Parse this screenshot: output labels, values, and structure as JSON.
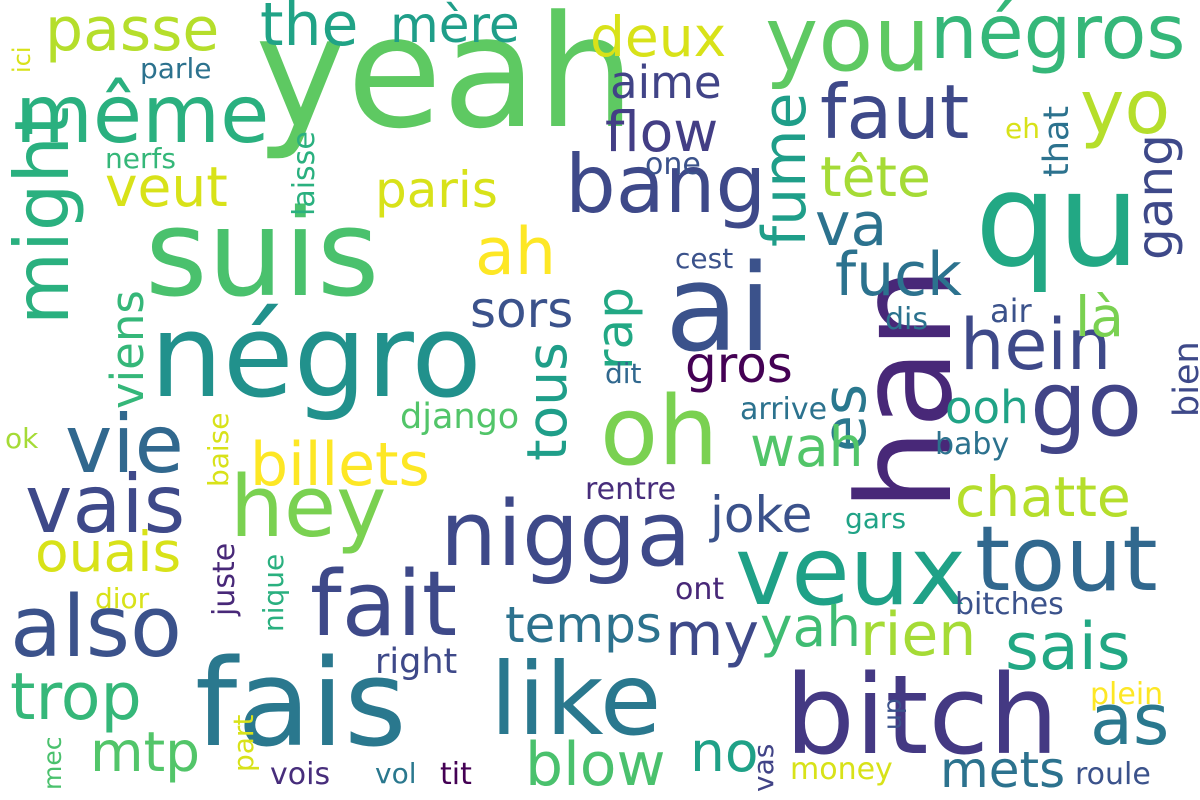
{
  "words": [
    {
      "text": "yeah",
      "color": "#5ec962"
    },
    {
      "text": "suis",
      "color": "#4ac16d"
    },
    {
      "text": "négro",
      "color": "#21918c"
    },
    {
      "text": "ai",
      "color": "#3b528b"
    },
    {
      "text": "qu",
      "color": "#22a884"
    },
    {
      "text": "han",
      "color": "#482878"
    },
    {
      "text": "fais",
      "color": "#2a788e"
    },
    {
      "text": "bitch",
      "color": "#443983"
    },
    {
      "text": "like",
      "color": "#2a788e"
    },
    {
      "text": "oh",
      "color": "#7ad151"
    },
    {
      "text": "nigga",
      "color": "#3e4989"
    },
    {
      "text": "veux",
      "color": "#1fa187"
    },
    {
      "text": "you",
      "color": "#5ec962"
    },
    {
      "text": "négros",
      "color": "#35b779"
    },
    {
      "text": "hey",
      "color": "#7ad151"
    },
    {
      "text": "go",
      "color": "#414487"
    },
    {
      "text": "même",
      "color": "#2ab07f"
    },
    {
      "text": "fait",
      "color": "#3e4989"
    },
    {
      "text": "tout",
      "color": "#31688e"
    },
    {
      "text": "also",
      "color": "#3b528b"
    },
    {
      "text": "vie",
      "color": "#31688e"
    },
    {
      "text": "vais",
      "color": "#3e4989"
    },
    {
      "text": "yo",
      "color": "#b5de2b"
    },
    {
      "text": "faut",
      "color": "#3e4989"
    },
    {
      "text": "bang",
      "color": "#3e4989"
    },
    {
      "text": "hein",
      "color": "#3e4989"
    },
    {
      "text": "might",
      "color": "#2ab07f"
    },
    {
      "text": "passe",
      "color": "#b5de2b"
    },
    {
      "text": "the",
      "color": "#20a386"
    },
    {
      "text": "mère",
      "color": "#1f9e89"
    },
    {
      "text": "deux",
      "color": "#d8e219"
    },
    {
      "text": "aime",
      "color": "#414487"
    },
    {
      "text": "flow",
      "color": "#433e85"
    },
    {
      "text": "tête",
      "color": "#a5db36"
    },
    {
      "text": "paris",
      "color": "#d8e219"
    },
    {
      "text": "veut",
      "color": "#d8e219"
    },
    {
      "text": "ah",
      "color": "#fde725"
    },
    {
      "text": "va",
      "color": "#2c728e"
    },
    {
      "text": "fuck",
      "color": "#2c728e"
    },
    {
      "text": "là",
      "color": "#7ad151"
    },
    {
      "text": "es",
      "color": "#2a788e"
    },
    {
      "text": "fume",
      "color": "#1f9e89"
    },
    {
      "text": "gang",
      "color": "#3e4989"
    },
    {
      "text": "sors",
      "color": "#3b528b"
    },
    {
      "text": "tous",
      "color": "#1f9e89"
    },
    {
      "text": "rap",
      "color": "#22a884"
    },
    {
      "text": "gros",
      "color": "#440154"
    },
    {
      "text": "billets",
      "color": "#fde725"
    },
    {
      "text": "chatte",
      "color": "#b5de2b"
    },
    {
      "text": "ooh",
      "color": "#20a386"
    },
    {
      "text": "wah",
      "color": "#52c569"
    },
    {
      "text": "joke",
      "color": "#3b528b"
    },
    {
      "text": "temps",
      "color": "#2c728e"
    },
    {
      "text": "my",
      "color": "#3e4989"
    },
    {
      "text": "yah",
      "color": "#3fbc73"
    },
    {
      "text": "rien",
      "color": "#a5db36"
    },
    {
      "text": "sais",
      "color": "#22a884"
    },
    {
      "text": "trop",
      "color": "#35b779"
    },
    {
      "text": "mtp",
      "color": "#52c569"
    },
    {
      "text": "blow",
      "color": "#4ac16d"
    },
    {
      "text": "no",
      "color": "#1fa187"
    },
    {
      "text": "as",
      "color": "#2a788e"
    },
    {
      "text": "mets",
      "color": "#2c728e"
    },
    {
      "text": "ouais",
      "color": "#d8e219"
    },
    {
      "text": "viens",
      "color": "#35b779"
    },
    {
      "text": "django",
      "color": "#52c569"
    },
    {
      "text": "one",
      "color": "#3b528b"
    },
    {
      "text": "cest",
      "color": "#3b528b"
    },
    {
      "text": "dit",
      "color": "#31688e"
    },
    {
      "text": "dis",
      "color": "#2c728e"
    },
    {
      "text": "air",
      "color": "#3b528b"
    },
    {
      "text": "arrive",
      "color": "#2c728e"
    },
    {
      "text": "baby",
      "color": "#2c728e"
    },
    {
      "text": "rentre",
      "color": "#472d7b"
    },
    {
      "text": "gars",
      "color": "#20a386"
    },
    {
      "text": "bitches",
      "color": "#3b528b"
    },
    {
      "text": "ont",
      "color": "#482878"
    },
    {
      "text": "right",
      "color": "#3e4989"
    },
    {
      "text": "parle",
      "color": "#2c728e"
    },
    {
      "text": "nerfs",
      "color": "#35b779"
    },
    {
      "text": "ici",
      "color": "#d8e219"
    },
    {
      "text": "ok",
      "color": "#a5db36"
    },
    {
      "text": "dior",
      "color": "#d8e219"
    },
    {
      "text": "baise",
      "color": "#d8e219"
    },
    {
      "text": "juste",
      "color": "#482878"
    },
    {
      "text": "nique",
      "color": "#2ab07f"
    },
    {
      "text": "part",
      "color": "#d8e219"
    },
    {
      "text": "mec",
      "color": "#4ac16d"
    },
    {
      "text": "vois",
      "color": "#472d7b"
    },
    {
      "text": "vol",
      "color": "#2a788e"
    },
    {
      "text": "tit",
      "color": "#440154"
    },
    {
      "text": "vas",
      "color": "#414487"
    },
    {
      "text": "money",
      "color": "#d8e219"
    },
    {
      "text": "roule",
      "color": "#3b528b"
    },
    {
      "text": "plein",
      "color": "#fde725"
    },
    {
      "text": "up",
      "color": "#3b528b"
    },
    {
      "text": "eh",
      "color": "#d8e219"
    },
    {
      "text": "that",
      "color": "#2c728e"
    },
    {
      "text": "bien",
      "color": "#3e4989"
    },
    {
      "text": "laisse",
      "color": "#2ab07f"
    }
  ]
}
